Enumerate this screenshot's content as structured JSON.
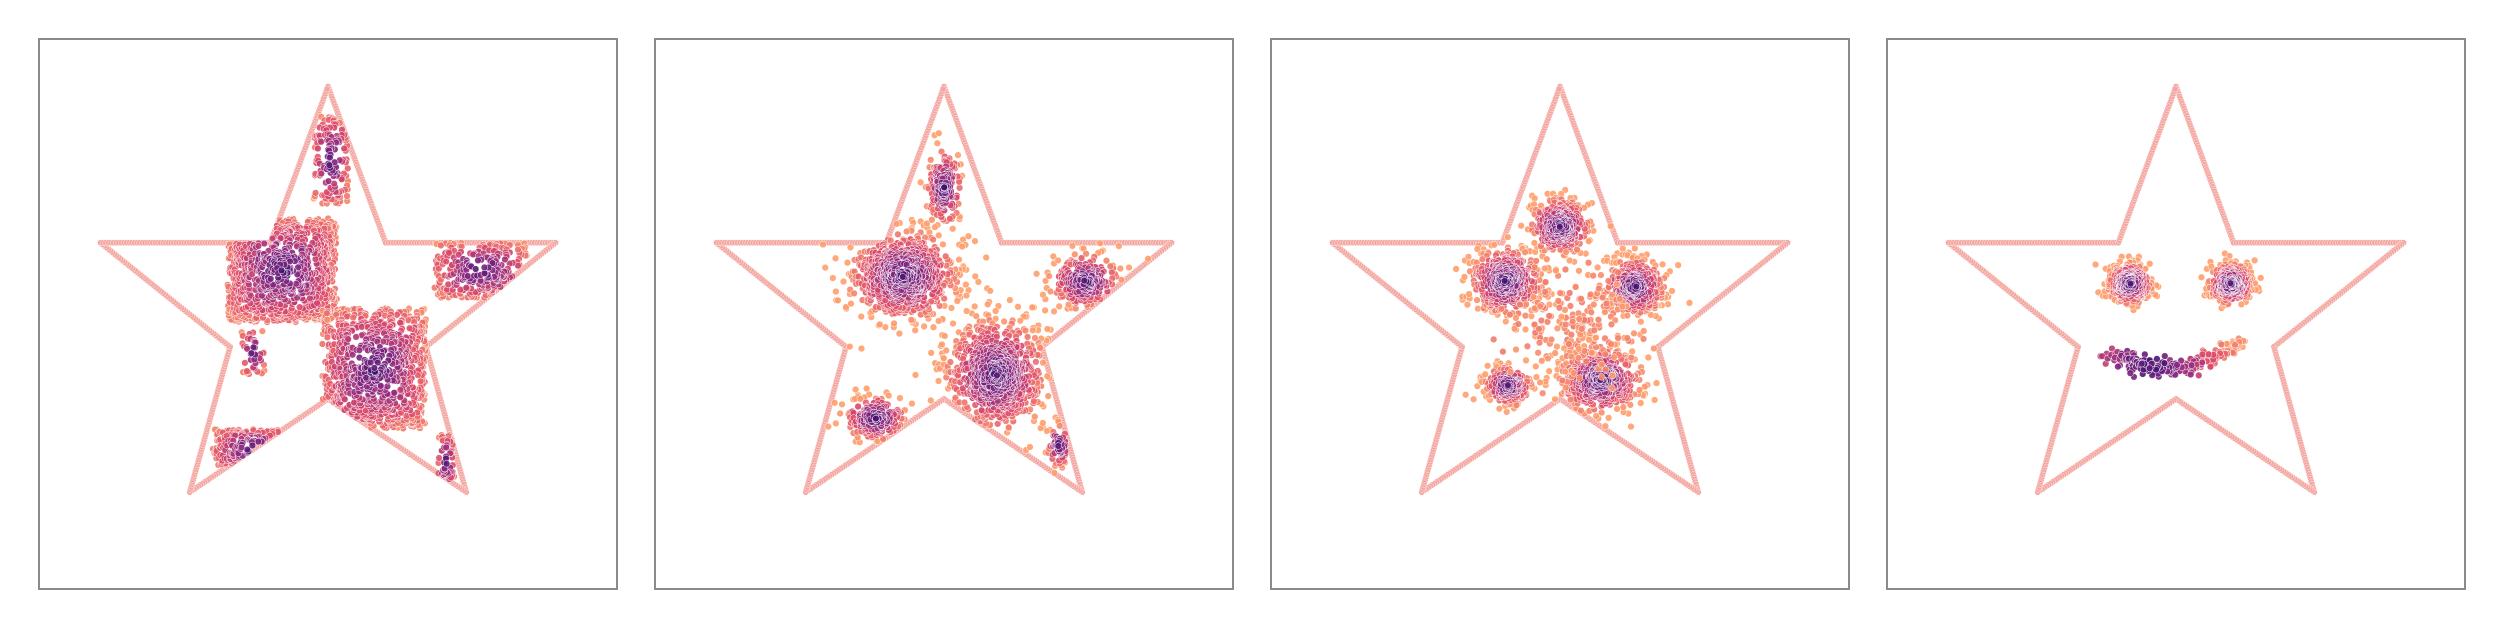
{
  "chart_data": [
    {
      "type": "scatter",
      "panel": 1,
      "boundary": {
        "shape": "star",
        "color": "#f4a6a0"
      },
      "colormap": [
        "#3b0f70",
        "#8c2981",
        "#de4968",
        "#fe9f6d"
      ],
      "clusters": [
        {
          "cx": 0.42,
          "cy": 0.42,
          "w": 0.19,
          "h": 0.19,
          "n": 900,
          "spread": "square"
        },
        {
          "cx": 0.58,
          "cy": 0.6,
          "w": 0.18,
          "h": 0.22,
          "n": 850,
          "spread": "square"
        },
        {
          "cx": 0.505,
          "cy": 0.22,
          "w": 0.06,
          "h": 0.16,
          "n": 140,
          "spread": "square"
        },
        {
          "cx": 0.765,
          "cy": 0.42,
          "w": 0.16,
          "h": 0.1,
          "n": 260,
          "spread": "square"
        },
        {
          "cx": 0.37,
          "cy": 0.745,
          "w": 0.14,
          "h": 0.07,
          "n": 150,
          "spread": "square"
        },
        {
          "cx": 0.705,
          "cy": 0.77,
          "w": 0.03,
          "h": 0.1,
          "n": 50,
          "spread": "square"
        },
        {
          "cx": 0.37,
          "cy": 0.57,
          "w": 0.04,
          "h": 0.08,
          "n": 40,
          "spread": "square"
        }
      ]
    },
    {
      "type": "scatter",
      "panel": 2,
      "boundary": {
        "shape": "star",
        "color": "#f4a6a0"
      },
      "colormap": [
        "#3b0f70",
        "#8c2981",
        "#de4968",
        "#fe9f6d"
      ],
      "clusters": [
        {
          "cx": 0.43,
          "cy": 0.43,
          "w": 0.18,
          "h": 0.16,
          "n": 800,
          "spread": "blob"
        },
        {
          "cx": 0.59,
          "cy": 0.61,
          "w": 0.17,
          "h": 0.2,
          "n": 800,
          "spread": "blob"
        },
        {
          "cx": 0.5,
          "cy": 0.27,
          "w": 0.06,
          "h": 0.14,
          "n": 180,
          "spread": "blob"
        },
        {
          "cx": 0.745,
          "cy": 0.44,
          "w": 0.12,
          "h": 0.1,
          "n": 240,
          "spread": "blob"
        },
        {
          "cx": 0.38,
          "cy": 0.69,
          "w": 0.11,
          "h": 0.08,
          "n": 200,
          "spread": "blob"
        },
        {
          "cx": 0.7,
          "cy": 0.74,
          "w": 0.04,
          "h": 0.08,
          "n": 60,
          "spread": "blob"
        }
      ]
    },
    {
      "type": "scatter",
      "panel": 3,
      "boundary": {
        "shape": "star",
        "color": "#f4a6a0"
      },
      "colormap": [
        "#3b0f70",
        "#8c2981",
        "#de4968",
        "#fe9f6d"
      ],
      "clusters": [
        {
          "cx": 0.405,
          "cy": 0.44,
          "w": 0.12,
          "h": 0.12,
          "n": 500,
          "spread": "blob"
        },
        {
          "cx": 0.5,
          "cy": 0.34,
          "w": 0.1,
          "h": 0.1,
          "n": 350,
          "spread": "blob"
        },
        {
          "cx": 0.63,
          "cy": 0.45,
          "w": 0.1,
          "h": 0.1,
          "n": 350,
          "spread": "blob"
        },
        {
          "cx": 0.57,
          "cy": 0.62,
          "w": 0.14,
          "h": 0.12,
          "n": 500,
          "spread": "blob"
        },
        {
          "cx": 0.41,
          "cy": 0.63,
          "w": 0.08,
          "h": 0.07,
          "n": 220,
          "spread": "blob"
        },
        {
          "cx": 0.52,
          "cy": 0.52,
          "w": 0.18,
          "h": 0.2,
          "n": 220,
          "spread": "sparse"
        }
      ]
    },
    {
      "type": "scatter",
      "panel": 4,
      "boundary": {
        "shape": "star",
        "color": "#f4a6a0"
      },
      "colormap": [
        "#3b0f70",
        "#8c2981",
        "#de4968",
        "#fe9f6d"
      ],
      "clusters": [
        {
          "cx": 0.42,
          "cy": 0.445,
          "w": 0.075,
          "h": 0.075,
          "n": 350,
          "spread": "blob"
        },
        {
          "cx": 0.595,
          "cy": 0.445,
          "w": 0.075,
          "h": 0.075,
          "n": 350,
          "spread": "blob"
        },
        {
          "cx": 0.5,
          "cy": 0.58,
          "w": 0.22,
          "h": 0.05,
          "n": 300,
          "spread": "smile"
        }
      ]
    }
  ]
}
